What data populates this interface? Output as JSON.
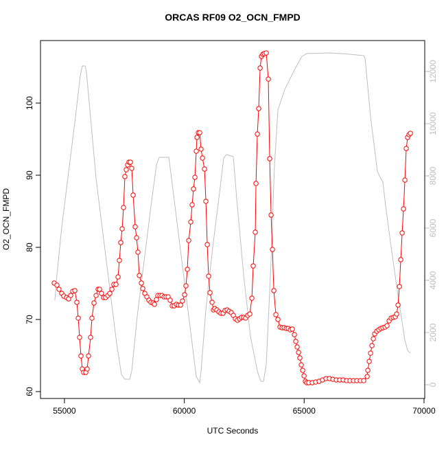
{
  "chart_data": {
    "type": "line",
    "title": "ORCAS RF09 O2_OCN_FMPD",
    "xlabel": "UTC Seconds",
    "ylabel": "O2_OCN_FMPD",
    "xlim": [
      54000,
      70030
    ],
    "xticks": [
      55000,
      60000,
      65000,
      70000
    ],
    "ylim": [
      59.05,
      108.67
    ],
    "yticks": [
      60,
      70,
      80,
      90,
      100
    ],
    "y2lim": [
      -526,
      13184
    ],
    "y2ticks": [
      0,
      2000,
      4000,
      6000,
      8000,
      10000,
      12000
    ],
    "series": [
      {
        "color": "#ff0000",
        "marker": "circle",
        "x": [
          54573,
          54687,
          54773,
          54888,
          54973,
          55088,
          55174,
          55260,
          55346,
          55432,
          55517,
          55575,
          55632,
          55689,
          55746,
          55804,
          55890,
          55947,
          56004,
          56090,
          56147,
          56233,
          56319,
          56405,
          56462,
          56548,
          56634,
          56720,
          56806,
          56892,
          56978,
          57063,
          57149,
          57235,
          57292,
          57349,
          57407,
          57464,
          57521,
          57579,
          57636,
          57693,
          57751,
          57808,
          57865,
          57951,
          58008,
          58065,
          58123,
          58209,
          58266,
          58352,
          58438,
          58524,
          58609,
          58695,
          58753,
          58838,
          58896,
          58982,
          59068,
          59154,
          59239,
          59325,
          59411,
          59497,
          59583,
          59669,
          59755,
          59841,
          59926,
          60012,
          60069,
          60127,
          60184,
          60270,
          60327,
          60384,
          60442,
          60499,
          60528,
          60585,
          60642,
          60699,
          60757,
          60843,
          60900,
          60957,
          61014,
          61072,
          61158,
          61215,
          61272,
          61358,
          61444,
          61530,
          61616,
          61701,
          61787,
          61873,
          61959,
          62045,
          62131,
          62217,
          62303,
          62388,
          62474,
          62560,
          62646,
          62732,
          62818,
          62875,
          62961,
          62990,
          63047,
          63104,
          63162,
          63219,
          63276,
          63334,
          63419,
          63505,
          63562,
          63620,
          63677,
          63734,
          63820,
          63906,
          63992,
          64078,
          64164,
          64250,
          64335,
          64421,
          64507,
          64593,
          64650,
          64708,
          64765,
          64822,
          64879,
          64937,
          64994,
          65051,
          65108,
          65194,
          65337,
          65480,
          65624,
          65767,
          65910,
          66053,
          66196,
          66339,
          66482,
          66626,
          66769,
          66912,
          67055,
          67198,
          67341,
          67485,
          67628,
          67656,
          67714,
          67771,
          67828,
          67886,
          67943,
          68029,
          68115,
          68200,
          68286,
          68372,
          68458,
          68544,
          68630,
          68716,
          68801,
          68859,
          68916,
          68973,
          69030,
          69088,
          69145,
          69202,
          69259,
          69317,
          69374,
          69431
        ],
        "values": [
          75.05,
          74.76,
          74.19,
          73.62,
          73.24,
          73.05,
          72.86,
          73.33,
          73.9,
          74.0,
          72.38,
          70.19,
          67.52,
          64.95,
          63.14,
          62.67,
          62.67,
          63.14,
          64.95,
          67.52,
          70.19,
          72.29,
          73.33,
          74.19,
          74.19,
          73.62,
          73.05,
          73.05,
          73.33,
          73.62,
          74.19,
          74.86,
          74.86,
          75.9,
          78.19,
          80.67,
          82.57,
          85.52,
          89.81,
          90.76,
          91.43,
          91.81,
          91.81,
          90.95,
          87.24,
          82.86,
          81.33,
          79.33,
          76.1,
          75.05,
          74.29,
          73.62,
          73.14,
          72.67,
          72.38,
          72.29,
          72.1,
          72.76,
          73.33,
          73.33,
          73.33,
          73.14,
          73.14,
          73.14,
          72.67,
          71.9,
          71.9,
          72.1,
          72.0,
          72.0,
          72.57,
          73.43,
          74.67,
          76.95,
          80.95,
          83.52,
          85.9,
          88.1,
          89.71,
          93.33,
          95.24,
          95.9,
          95.9,
          93.62,
          92.38,
          90.86,
          86.38,
          80.38,
          76.0,
          73.71,
          72.38,
          71.33,
          71.52,
          71.33,
          71.05,
          70.86,
          70.86,
          71.24,
          71.33,
          71.14,
          70.95,
          70.57,
          70.1,
          69.9,
          70.1,
          70.29,
          70.29,
          70.19,
          70.57,
          70.76,
          72.95,
          77.43,
          82.1,
          88.86,
          95.71,
          99.24,
          104.86,
          106.48,
          106.76,
          106.86,
          106.95,
          103.33,
          92.29,
          84.48,
          79.71,
          74.0,
          70.67,
          70.0,
          68.95,
          68.86,
          68.86,
          68.76,
          68.76,
          68.57,
          68.67,
          67.9,
          66.95,
          66.19,
          65.43,
          64.67,
          63.71,
          62.95,
          62.19,
          61.43,
          61.24,
          61.24,
          61.24,
          61.33,
          61.43,
          61.62,
          61.81,
          61.81,
          61.71,
          61.62,
          61.62,
          61.62,
          61.52,
          61.52,
          61.52,
          61.52,
          61.52,
          61.52,
          62.1,
          62.95,
          64.19,
          65.33,
          66.38,
          67.33,
          68.0,
          68.38,
          68.57,
          68.76,
          68.86,
          68.95,
          69.14,
          69.81,
          70.19,
          70.29,
          70.38,
          70.76,
          72.0,
          74.57,
          78.29,
          82.0,
          85.33,
          89.33,
          93.71,
          95.24,
          95.62,
          95.81
        ]
      },
      {
        "color": "#bebebe",
        "axis": "y2",
        "x": [
          54601,
          54658,
          54888,
          55174,
          55460,
          55661,
          55746,
          55861,
          55918,
          56061,
          56319,
          56605,
          56892,
          57178,
          57378,
          57521,
          57722,
          57808,
          58037,
          58323,
          58609,
          58838,
          58953,
          59354,
          59468,
          59755,
          60041,
          60327,
          60499,
          60642,
          60699,
          60900,
          61186,
          61472,
          61644,
          61759,
          62045,
          62188,
          62474,
          62761,
          63047,
          63190,
          63305,
          63419,
          63620,
          63763,
          63906,
          64192,
          64622,
          64908,
          65108,
          66053,
          66912,
          67485,
          67542,
          67771,
          68058,
          68200,
          68286,
          68401,
          68630,
          68916,
          69202,
          69317,
          69431
        ],
        "values": [
          3237,
          3947,
          6053,
          8158,
          10263,
          11842,
          12211,
          12211,
          11974,
          10526,
          7895,
          5789,
          3684,
          1579,
          395,
          211,
          211,
          526,
          2632,
          4737,
          6842,
          8421,
          8711,
          8711,
          7895,
          5789,
          3684,
          1579,
          316,
          79,
          526,
          2895,
          5263,
          7368,
          8684,
          8816,
          8737,
          7105,
          4211,
          1842,
          526,
          132,
          132,
          789,
          4737,
          8421,
          10526,
          11316,
          12105,
          12579,
          12684,
          12711,
          12658,
          12605,
          12500,
          10263,
          8158,
          7895,
          7763,
          6842,
          5263,
          3421,
          1711,
          1316,
          1211
        ]
      }
    ]
  }
}
